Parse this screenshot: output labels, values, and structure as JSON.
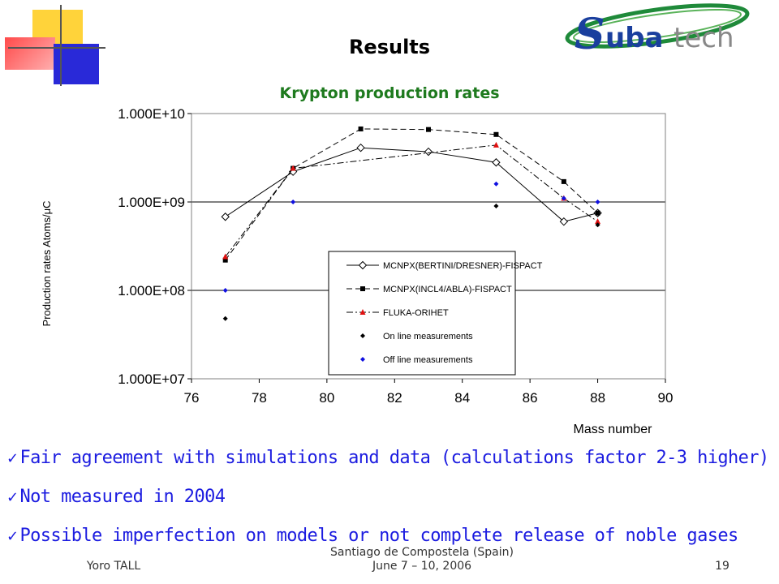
{
  "slide": {
    "title": "Results",
    "logo_text": "Subatech",
    "bullets": [
      "Fair agreement with simulations and data (calculations factor 2-3 higher)",
      "Not measured in 2004",
      "Possible imperfection on models or not complete release of noble gases"
    ],
    "footer": {
      "author": "Yoro TALL",
      "venue_line1": "Santiago de Compostela (Spain)",
      "venue_line2": "June 7 – 10, 2006",
      "page": "19"
    }
  },
  "colors": {
    "title_green": "#1e7a1e",
    "bullet_blue": "#1c1ce0",
    "fluka_red": "#e01010",
    "offline_blue": "#1010e0"
  },
  "chart_data": {
    "type": "line",
    "title": "Krypton production rates",
    "xlabel": "Mass number",
    "ylabel": "Production rates Atoms/μC",
    "xlim": [
      76,
      90
    ],
    "ylim": [
      10000000.0,
      10000000000.0
    ],
    "yscale": "log",
    "x_ticks": [
      "76",
      "78",
      "80",
      "82",
      "84",
      "86",
      "88",
      "90"
    ],
    "y_ticks": [
      "1.000E+10",
      "1.000E+09",
      "1.000E+08",
      "1.000E+07"
    ],
    "grid": "horizontal major",
    "legend_position": "lower-right inside plot",
    "series": [
      {
        "name": "MCNPX(BERTINI/DRESNER)-FISPACT",
        "marker": "open-diamond",
        "line": "solid",
        "color": "#000000",
        "x": [
          77,
          79,
          81,
          83,
          85,
          87,
          88
        ],
        "y": [
          680000000.0,
          2200000000.0,
          4100000000.0,
          3700000000.0,
          2800000000.0,
          600000000.0,
          750000000.0
        ]
      },
      {
        "name": "MCNPX(INCL4/ABLA)-FISPACT",
        "marker": "square",
        "line": "dashed",
        "color": "#000000",
        "x": [
          77,
          79,
          81,
          83,
          85,
          87,
          88
        ],
        "y": [
          220000000.0,
          2400000000.0,
          6700000000.0,
          6600000000.0,
          5800000000.0,
          1700000000.0,
          750000000.0
        ]
      },
      {
        "name": "FLUKA-ORIHET",
        "marker": "triangle",
        "line": "dashdot",
        "color": "#e01010",
        "x": [
          77,
          79,
          85,
          87,
          88
        ],
        "y": [
          240000000.0,
          2400000000.0,
          4400000000.0,
          1100000000.0,
          600000000.0
        ]
      },
      {
        "name": "On line measurements",
        "marker": "diamond",
        "line": "none",
        "color": "#000000",
        "x": [
          77,
          85,
          88
        ],
        "y": [
          48000000.0,
          900000000.0,
          550000000.0
        ]
      },
      {
        "name": "Off line measurements",
        "marker": "diamond",
        "line": "none",
        "color": "#1010e0",
        "x": [
          77,
          79,
          85,
          87,
          88
        ],
        "y": [
          100000000.0,
          1000000000.0,
          1600000000.0,
          1100000000.0,
          1000000000.0
        ]
      }
    ]
  }
}
